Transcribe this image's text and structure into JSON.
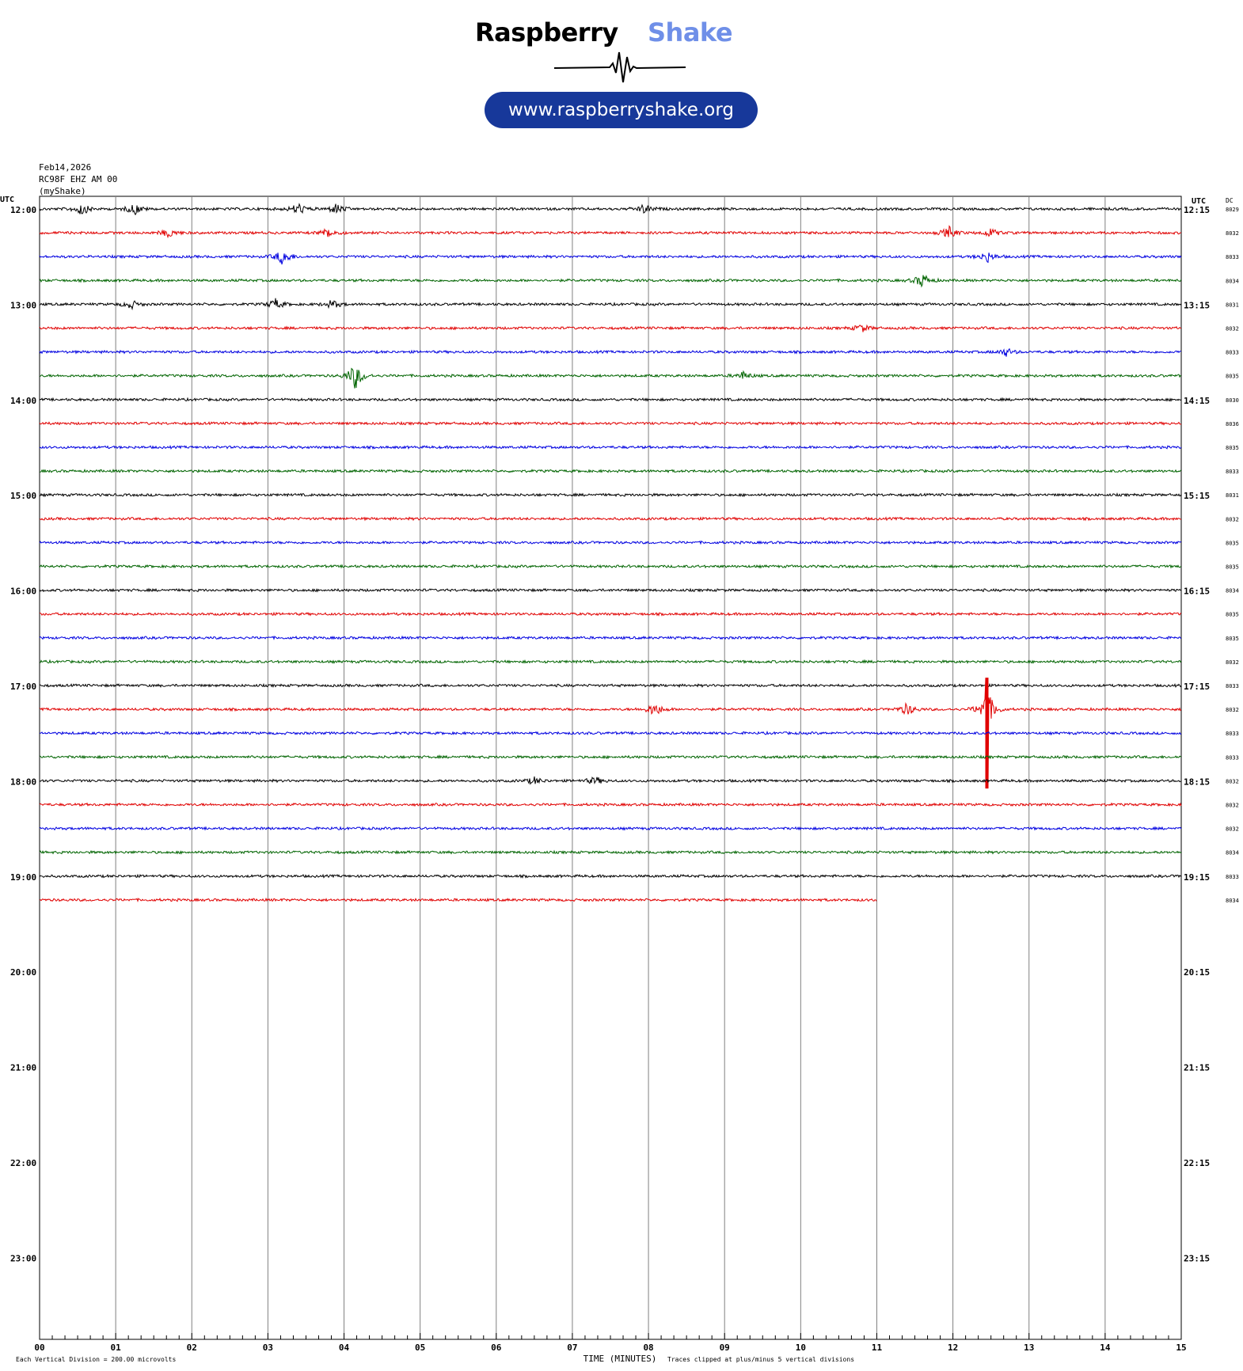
{
  "brand": {
    "name_part1": "Raspberry",
    "name_part2": "Shake",
    "url": "www.raspberryshake.org",
    "accent_color": "#6f8fe8",
    "pill_color": "#17389a"
  },
  "header": {
    "date": "Feb14,2026",
    "station": "RC98F EHZ AM 00",
    "network": "(myShake)"
  },
  "chart_data": {
    "type": "line",
    "title": "",
    "xlabel": "TIME (MINUTES)",
    "ylabel_left": "UTC",
    "ylabel_right": "UTC",
    "dc_label": "DC",
    "xlim": [
      0,
      15
    ],
    "x_ticks": [
      "00",
      "01",
      "02",
      "03",
      "04",
      "05",
      "06",
      "07",
      "08",
      "09",
      "10",
      "11",
      "12",
      "13",
      "14",
      "15"
    ],
    "left_hour_labels": [
      "12:00",
      "13:00",
      "14:00",
      "15:00",
      "16:00",
      "17:00",
      "18:00",
      "19:00",
      "20:00",
      "21:00",
      "22:00",
      "23:00"
    ],
    "right_hour_labels": [
      "12:15",
      "13:15",
      "14:15",
      "15:15",
      "16:15",
      "17:15",
      "18:15",
      "19:15",
      "20:15",
      "21:15",
      "22:15",
      "23:15"
    ],
    "dc_values": [
      "8029",
      "8032",
      "8033",
      "8034",
      "8031",
      "8032",
      "8033",
      "8035",
      "8030",
      "8036",
      "8035",
      "8033",
      "8031",
      "8032",
      "8035",
      "8035",
      "8034",
      "8035",
      "8035",
      "8032",
      "8033",
      "8032",
      "8033",
      "8033",
      "8032",
      "8032",
      "8032",
      "8034",
      "8033",
      "8034"
    ],
    "trace_colors": [
      "#000000",
      "#e00000",
      "#0000e0",
      "#006400"
    ],
    "rows_per_hour": 4,
    "minutes_per_row": 15,
    "data_end": {
      "row": 29,
      "minute": 11
    },
    "events": [
      {
        "row": 0,
        "minute": 0.55,
        "amp": 1.6
      },
      {
        "row": 0,
        "minute": 1.25,
        "amp": 1.4
      },
      {
        "row": 0,
        "minute": 3.4,
        "amp": 1.5
      },
      {
        "row": 0,
        "minute": 3.9,
        "amp": 1.3
      },
      {
        "row": 0,
        "minute": 7.95,
        "amp": 1.2
      },
      {
        "row": 1,
        "minute": 1.7,
        "amp": 1.1
      },
      {
        "row": 1,
        "minute": 3.8,
        "amp": 1.3
      },
      {
        "row": 1,
        "minute": 11.95,
        "amp": 1.5
      },
      {
        "row": 1,
        "minute": 12.5,
        "amp": 1.1
      },
      {
        "row": 2,
        "minute": 3.2,
        "amp": 2.2
      },
      {
        "row": 2,
        "minute": 12.45,
        "amp": 1.4
      },
      {
        "row": 3,
        "minute": 11.6,
        "amp": 1.8
      },
      {
        "row": 4,
        "minute": 1.2,
        "amp": 1.1
      },
      {
        "row": 4,
        "minute": 3.1,
        "amp": 1.3
      },
      {
        "row": 4,
        "minute": 3.85,
        "amp": 1.1
      },
      {
        "row": 5,
        "minute": 10.8,
        "amp": 1.0
      },
      {
        "row": 6,
        "minute": 12.7,
        "amp": 1.0
      },
      {
        "row": 7,
        "minute": 4.15,
        "amp": 3.5
      },
      {
        "row": 7,
        "minute": 9.25,
        "amp": 1.0
      },
      {
        "row": 21,
        "minute": 8.08,
        "amp": 1.8
      },
      {
        "row": 21,
        "minute": 11.4,
        "amp": 1.6
      },
      {
        "row": 21,
        "minute": 12.45,
        "amp": 5.0
      },
      {
        "row": 24,
        "minute": 6.5,
        "amp": 0.9
      },
      {
        "row": 24,
        "minute": 7.3,
        "amp": 1.0
      }
    ],
    "footer_left": "Each Vertical Division =  200.00 microvolts",
    "footer_right": "Traces clipped at plus/minus 5 vertical divisions"
  }
}
